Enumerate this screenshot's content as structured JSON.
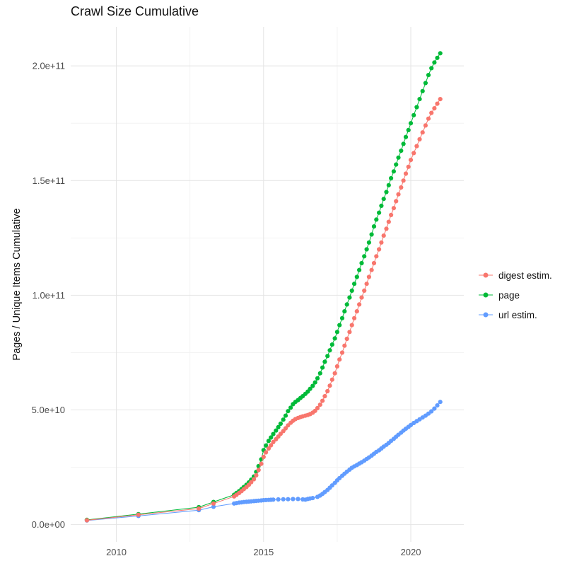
{
  "title": "Crawl Size Cumulative",
  "ylabel": "Pages / Unique Items Cumulative",
  "chart_data": {
    "type": "scatter",
    "title": "Crawl Size Cumulative",
    "xlabel": "",
    "ylabel": "Pages / Unique Items Cumulative",
    "grid": true,
    "legend_position": "right",
    "x_ticks": [
      2010,
      2015,
      2020
    ],
    "x_tick_labels": [
      "2010",
      "2015",
      "2020"
    ],
    "x_minor_ticks": [
      2012.5,
      2017.5
    ],
    "y_ticks": [
      0,
      50000000000.0,
      100000000000.0,
      150000000000.0,
      200000000000.0
    ],
    "y_tick_labels": [
      "0.0e+00",
      "5.0e+10",
      "1.0e+11",
      "1.5e+11",
      "2.0e+11"
    ],
    "y_minor_ticks": [
      25000000000.0,
      75000000000.0,
      125000000000.0,
      175000000000.0
    ],
    "xlim": [
      2008.45,
      2021.8
    ],
    "ylim": [
      -7500000000.0,
      217000000000.0
    ],
    "y_unit_multiplier": 1000000000.0,
    "colors": {
      "digest": "#F8766D",
      "page": "#00BA38",
      "url": "#619CFF"
    },
    "series": [
      {
        "name": "digest estim.",
        "color": "#F8766D",
        "points": [
          [
            2009.0,
            1.9
          ],
          [
            2010.75,
            4.3
          ],
          [
            2012.8,
            7.0
          ],
          [
            2013.3,
            9.2
          ],
          [
            2014.0,
            12.3
          ],
          [
            2014.08,
            13.0
          ],
          [
            2014.17,
            13.8
          ],
          [
            2014.25,
            14.6
          ],
          [
            2014.33,
            15.5
          ],
          [
            2014.42,
            16.4
          ],
          [
            2014.5,
            17.4
          ],
          [
            2014.58,
            18.5
          ],
          [
            2014.67,
            19.8
          ],
          [
            2014.75,
            21.5
          ],
          [
            2014.83,
            23.8
          ],
          [
            2014.92,
            26.5
          ],
          [
            2015.0,
            29.5
          ],
          [
            2015.08,
            31.5
          ],
          [
            2015.17,
            33.2
          ],
          [
            2015.25,
            34.6
          ],
          [
            2015.33,
            36.0
          ],
          [
            2015.42,
            37.2
          ],
          [
            2015.5,
            38.4
          ],
          [
            2015.58,
            39.6
          ],
          [
            2015.67,
            40.8
          ],
          [
            2015.75,
            42.0
          ],
          [
            2015.83,
            43.3
          ],
          [
            2015.92,
            44.4
          ],
          [
            2016.0,
            45.3
          ],
          [
            2016.08,
            46.0
          ],
          [
            2016.17,
            46.5
          ],
          [
            2016.25,
            46.9
          ],
          [
            2016.33,
            47.2
          ],
          [
            2016.42,
            47.5
          ],
          [
            2016.5,
            47.8
          ],
          [
            2016.58,
            48.2
          ],
          [
            2016.67,
            48.8
          ],
          [
            2016.75,
            49.6
          ],
          [
            2016.83,
            50.8
          ],
          [
            2016.92,
            52.3
          ],
          [
            2017.0,
            54.0
          ],
          [
            2017.08,
            56.0
          ],
          [
            2017.17,
            58.2
          ],
          [
            2017.25,
            60.6
          ],
          [
            2017.33,
            63.2
          ],
          [
            2017.42,
            66.0
          ],
          [
            2017.5,
            69.0
          ],
          [
            2017.58,
            72.0
          ],
          [
            2017.67,
            75.0
          ],
          [
            2017.75,
            78.0
          ],
          [
            2017.83,
            81.0
          ],
          [
            2017.92,
            84.0
          ],
          [
            2018.0,
            87.0
          ],
          [
            2018.08,
            90.0
          ],
          [
            2018.17,
            93.0
          ],
          [
            2018.25,
            96.0
          ],
          [
            2018.33,
            99.0
          ],
          [
            2018.42,
            102
          ],
          [
            2018.5,
            105
          ],
          [
            2018.58,
            108
          ],
          [
            2018.67,
            111
          ],
          [
            2018.75,
            114
          ],
          [
            2018.83,
            117
          ],
          [
            2018.92,
            120
          ],
          [
            2019.0,
            123
          ],
          [
            2019.08,
            126
          ],
          [
            2019.17,
            129
          ],
          [
            2019.25,
            132
          ],
          [
            2019.33,
            135
          ],
          [
            2019.42,
            138
          ],
          [
            2019.5,
            141
          ],
          [
            2019.58,
            144
          ],
          [
            2019.67,
            147
          ],
          [
            2019.75,
            150
          ],
          [
            2019.83,
            153
          ],
          [
            2019.92,
            156
          ],
          [
            2020.0,
            159
          ],
          [
            2020.1,
            162
          ],
          [
            2020.2,
            165
          ],
          [
            2020.3,
            168
          ],
          [
            2020.4,
            171
          ],
          [
            2020.5,
            174
          ],
          [
            2020.6,
            177
          ],
          [
            2020.7,
            179.5
          ],
          [
            2020.8,
            181.5
          ],
          [
            2020.9,
            183.5
          ],
          [
            2021.0,
            185.5
          ]
        ]
      },
      {
        "name": "page",
        "color": "#00BA38",
        "points": [
          [
            2009.0,
            2.1
          ],
          [
            2010.75,
            4.6
          ],
          [
            2012.8,
            7.6
          ],
          [
            2013.3,
            9.9
          ],
          [
            2014.0,
            13.0
          ],
          [
            2014.08,
            13.8
          ],
          [
            2014.17,
            14.6
          ],
          [
            2014.25,
            15.5
          ],
          [
            2014.33,
            16.4
          ],
          [
            2014.42,
            17.4
          ],
          [
            2014.5,
            18.4
          ],
          [
            2014.58,
            19.6
          ],
          [
            2014.67,
            21.0
          ],
          [
            2014.75,
            23.0
          ],
          [
            2014.83,
            25.5
          ],
          [
            2014.92,
            28.5
          ],
          [
            2015.0,
            32.5
          ],
          [
            2015.08,
            34.5
          ],
          [
            2015.17,
            36.5
          ],
          [
            2015.25,
            38.0
          ],
          [
            2015.33,
            39.5
          ],
          [
            2015.42,
            41.0
          ],
          [
            2015.5,
            42.5
          ],
          [
            2015.58,
            44.0
          ],
          [
            2015.67,
            45.8
          ],
          [
            2015.75,
            47.5
          ],
          [
            2015.83,
            49.5
          ],
          [
            2015.92,
            51.0
          ],
          [
            2016.0,
            52.5
          ],
          [
            2016.08,
            53.5
          ],
          [
            2016.17,
            54.3
          ],
          [
            2016.25,
            55.2
          ],
          [
            2016.33,
            56.0
          ],
          [
            2016.42,
            57.0
          ],
          [
            2016.5,
            58.0
          ],
          [
            2016.58,
            59.2
          ],
          [
            2016.67,
            60.5
          ],
          [
            2016.75,
            62.0
          ],
          [
            2016.83,
            63.8
          ],
          [
            2016.92,
            66.0
          ],
          [
            2017.0,
            68.5
          ],
          [
            2017.08,
            71.0
          ],
          [
            2017.17,
            73.5
          ],
          [
            2017.25,
            76.0
          ],
          [
            2017.33,
            78.5
          ],
          [
            2017.42,
            81.2
          ],
          [
            2017.5,
            84.0
          ],
          [
            2017.58,
            87.0
          ],
          [
            2017.67,
            90.0
          ],
          [
            2017.75,
            93.0
          ],
          [
            2017.83,
            96.0
          ],
          [
            2017.92,
            99.0
          ],
          [
            2018.0,
            102
          ],
          [
            2018.08,
            105
          ],
          [
            2018.17,
            108
          ],
          [
            2018.25,
            111
          ],
          [
            2018.33,
            114
          ],
          [
            2018.42,
            117
          ],
          [
            2018.5,
            120
          ],
          [
            2018.58,
            123
          ],
          [
            2018.67,
            126.5
          ],
          [
            2018.75,
            130
          ],
          [
            2018.83,
            133
          ],
          [
            2018.92,
            136
          ],
          [
            2019.0,
            139
          ],
          [
            2019.08,
            142
          ],
          [
            2019.17,
            145
          ],
          [
            2019.25,
            148
          ],
          [
            2019.33,
            151
          ],
          [
            2019.42,
            154
          ],
          [
            2019.5,
            157
          ],
          [
            2019.58,
            160
          ],
          [
            2019.67,
            163
          ],
          [
            2019.75,
            166
          ],
          [
            2019.83,
            169
          ],
          [
            2019.92,
            172
          ],
          [
            2020.0,
            175
          ],
          [
            2020.1,
            178.5
          ],
          [
            2020.2,
            182
          ],
          [
            2020.3,
            185.5
          ],
          [
            2020.4,
            189
          ],
          [
            2020.5,
            192.5
          ],
          [
            2020.6,
            196
          ],
          [
            2020.7,
            199
          ],
          [
            2020.8,
            201.5
          ],
          [
            2020.9,
            203.5
          ],
          [
            2021.0,
            205.5
          ]
        ]
      },
      {
        "name": "url estim.",
        "color": "#619CFF",
        "points": [
          [
            2009.0,
            1.8
          ],
          [
            2010.75,
            3.8
          ],
          [
            2012.8,
            6.3
          ],
          [
            2013.3,
            7.8
          ],
          [
            2014.0,
            9.2
          ],
          [
            2014.08,
            9.4
          ],
          [
            2014.17,
            9.6
          ],
          [
            2014.25,
            9.7
          ],
          [
            2014.33,
            9.85
          ],
          [
            2014.42,
            9.95
          ],
          [
            2014.5,
            10.05
          ],
          [
            2014.58,
            10.15
          ],
          [
            2014.67,
            10.25
          ],
          [
            2014.75,
            10.35
          ],
          [
            2014.83,
            10.45
          ],
          [
            2014.92,
            10.55
          ],
          [
            2015.0,
            10.65
          ],
          [
            2015.08,
            10.72
          ],
          [
            2015.17,
            10.8
          ],
          [
            2015.25,
            10.85
          ],
          [
            2015.33,
            10.9
          ],
          [
            2015.5,
            11.0
          ],
          [
            2015.67,
            11.05
          ],
          [
            2015.83,
            11.1
          ],
          [
            2016.0,
            11.15
          ],
          [
            2016.17,
            11.2
          ],
          [
            2016.33,
            11.0
          ],
          [
            2016.42,
            10.9
          ],
          [
            2016.5,
            11.2
          ],
          [
            2016.58,
            11.4
          ],
          [
            2016.67,
            11.6
          ],
          [
            2016.83,
            12.1
          ],
          [
            2016.92,
            12.7
          ],
          [
            2017.0,
            13.4
          ],
          [
            2017.08,
            14.2
          ],
          [
            2017.17,
            15.1
          ],
          [
            2017.25,
            16.1
          ],
          [
            2017.33,
            17.1
          ],
          [
            2017.42,
            18.2
          ],
          [
            2017.5,
            19.3
          ],
          [
            2017.58,
            20.3
          ],
          [
            2017.67,
            21.3
          ],
          [
            2017.75,
            22.2
          ],
          [
            2017.83,
            23.1
          ],
          [
            2017.92,
            24.0
          ],
          [
            2018.0,
            24.8
          ],
          [
            2018.08,
            25.4
          ],
          [
            2018.17,
            26.0
          ],
          [
            2018.25,
            26.6
          ],
          [
            2018.33,
            27.2
          ],
          [
            2018.42,
            27.9
          ],
          [
            2018.5,
            28.6
          ],
          [
            2018.58,
            29.3
          ],
          [
            2018.67,
            30.1
          ],
          [
            2018.75,
            30.9
          ],
          [
            2018.83,
            31.7
          ],
          [
            2018.92,
            32.4
          ],
          [
            2019.0,
            33.2
          ],
          [
            2019.08,
            34.0
          ],
          [
            2019.17,
            34.8
          ],
          [
            2019.25,
            35.6
          ],
          [
            2019.33,
            36.5
          ],
          [
            2019.42,
            37.4
          ],
          [
            2019.5,
            38.3
          ],
          [
            2019.58,
            39.2
          ],
          [
            2019.67,
            40.1
          ],
          [
            2019.75,
            41.0
          ],
          [
            2019.83,
            41.8
          ],
          [
            2019.92,
            42.6
          ],
          [
            2020.0,
            43.4
          ],
          [
            2020.1,
            44.3
          ],
          [
            2020.2,
            45.1
          ],
          [
            2020.3,
            45.9
          ],
          [
            2020.4,
            46.7
          ],
          [
            2020.5,
            47.5
          ],
          [
            2020.6,
            48.4
          ],
          [
            2020.7,
            49.4
          ],
          [
            2020.8,
            50.6
          ],
          [
            2020.9,
            52.0
          ],
          [
            2021.0,
            53.5
          ]
        ]
      }
    ]
  }
}
